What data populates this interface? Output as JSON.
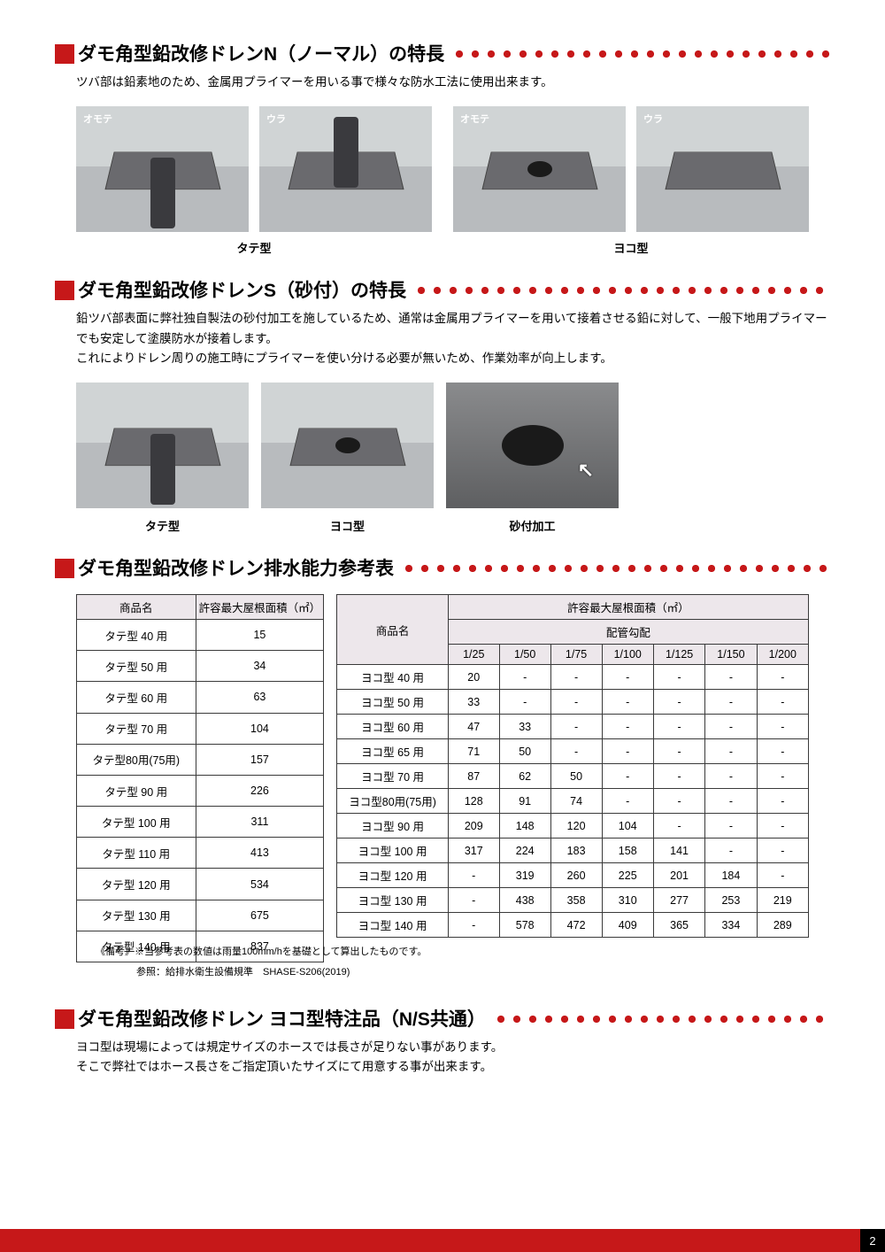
{
  "section1": {
    "title": "ダモ角型鉛改修ドレンN（ノーマル）の特長",
    "body": "ツバ部は鉛素地のため、金属用プライマーを用いる事で様々な防水工法に使用出来ます。",
    "images": [
      {
        "tag": "オモテ"
      },
      {
        "tag": "ウラ"
      },
      {
        "tag": "オモテ"
      },
      {
        "tag": "ウラ"
      }
    ],
    "cap_left": "タテ型",
    "cap_right": "ヨコ型"
  },
  "section2": {
    "title": "ダモ角型鉛改修ドレンS（砂付）の特長",
    "body1": "鉛ツバ部表面に弊社独自製法の砂付加工を施しているため、通常は金属用プライマーを用いて接着させる鉛に対して、一般下地用プライマーでも安定して塗膜防水が接着します。",
    "body2": "これによりドレン周りの施工時にプライマーを使い分ける必要が無いため、作業効率が向上します。",
    "caps": [
      "タテ型",
      "ヨコ型",
      "砂付加工"
    ]
  },
  "section3": {
    "title": "ダモ角型鉛改修ドレン排水能力参考表",
    "table_left": {
      "h_name": "商品名",
      "h_area": "許容最大屋根面積（㎡）",
      "rows": [
        [
          "タテ型 40 用",
          "15"
        ],
        [
          "タテ型 50 用",
          "34"
        ],
        [
          "タテ型 60 用",
          "63"
        ],
        [
          "タテ型 70 用",
          "104"
        ],
        [
          "タテ型80用(75用)",
          "157"
        ],
        [
          "タテ型 90 用",
          "226"
        ],
        [
          "タテ型 100 用",
          "311"
        ],
        [
          "タテ型 110 用",
          "413"
        ],
        [
          "タテ型 120 用",
          "534"
        ],
        [
          "タテ型 130 用",
          "675"
        ],
        [
          "タテ型 140 用",
          "837"
        ]
      ]
    },
    "table_right": {
      "h_name": "商品名",
      "h_area": "許容最大屋根面積（㎡）",
      "h_slope": "配管勾配",
      "slopes": [
        "1/25",
        "1/50",
        "1/75",
        "1/100",
        "1/125",
        "1/150",
        "1/200"
      ],
      "rows": [
        [
          "ヨコ型 40 用",
          "20",
          "-",
          "-",
          "-",
          "-",
          "-",
          "-"
        ],
        [
          "ヨコ型 50 用",
          "33",
          "-",
          "-",
          "-",
          "-",
          "-",
          "-"
        ],
        [
          "ヨコ型 60 用",
          "47",
          "33",
          "-",
          "-",
          "-",
          "-",
          "-"
        ],
        [
          "ヨコ型 65 用",
          "71",
          "50",
          "-",
          "-",
          "-",
          "-",
          "-"
        ],
        [
          "ヨコ型 70 用",
          "87",
          "62",
          "50",
          "-",
          "-",
          "-",
          "-"
        ],
        [
          "ヨコ型80用(75用)",
          "128",
          "91",
          "74",
          "-",
          "-",
          "-",
          "-"
        ],
        [
          "ヨコ型 90 用",
          "209",
          "148",
          "120",
          "104",
          "-",
          "-",
          "-"
        ],
        [
          "ヨコ型 100 用",
          "317",
          "224",
          "183",
          "158",
          "141",
          "-",
          "-"
        ],
        [
          "ヨコ型 120 用",
          "-",
          "319",
          "260",
          "225",
          "201",
          "184",
          "-"
        ],
        [
          "ヨコ型 130 用",
          "-",
          "438",
          "358",
          "310",
          "277",
          "253",
          "219"
        ],
        [
          "ヨコ型 140 用",
          "-",
          "578",
          "472",
          "409",
          "365",
          "334",
          "289"
        ]
      ]
    },
    "note1": "《備考》※当参考表の数値は雨量100mm/hを基礎として算出したものです。",
    "note2": "参照：給排水衛生設備規準　SHASE-S206(2019)"
  },
  "section4": {
    "title": "ダモ角型鉛改修ドレン ヨコ型特注品（N/S共通）",
    "body1": "ヨコ型は現場によっては規定サイズのホースでは長さが足りない事があります。",
    "body2": "そこで弊社ではホース長さをご指定頂いたサイズにて用意する事が出来ます。"
  },
  "page_number": "2",
  "colors": {
    "accent_red": "#c61819",
    "table_header_bg": "#ede7eb",
    "border": "#3a3a3a"
  }
}
